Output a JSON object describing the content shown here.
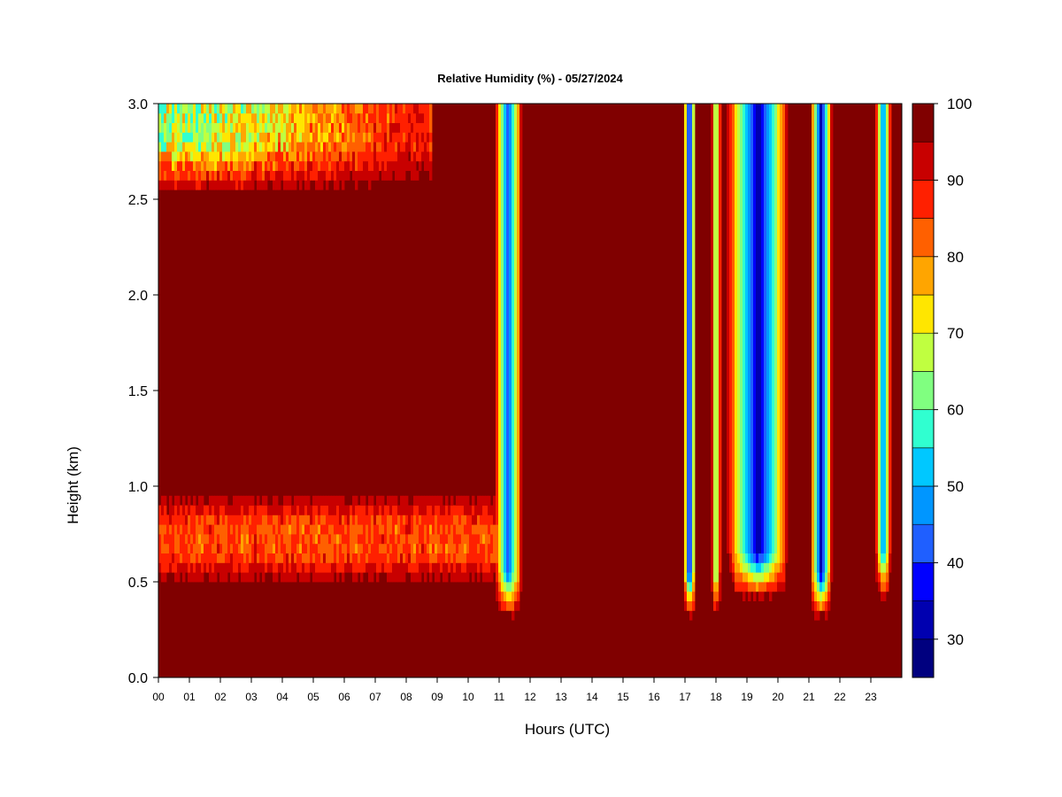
{
  "chart_data": {
    "type": "heatmap",
    "title": "Relative Humidity (%) - 05/27/2024",
    "xlabel": "Hours (UTC)",
    "ylabel": "Height (km)",
    "xlim": [
      0,
      24
    ],
    "ylim": [
      0,
      3.0
    ],
    "x_ticks": [
      "00",
      "01",
      "02",
      "03",
      "04",
      "05",
      "06",
      "07",
      "08",
      "09",
      "10",
      "11",
      "12",
      "13",
      "14",
      "15",
      "16",
      "17",
      "18",
      "19",
      "20",
      "21",
      "22",
      "23"
    ],
    "y_ticks": [
      "0.0",
      "0.5",
      "1.0",
      "1.5",
      "2.0",
      "2.5",
      "3.0"
    ],
    "colorbar": {
      "range": [
        25,
        100
      ],
      "step": 5,
      "tick_labels": [
        "30",
        "40",
        "50",
        "60",
        "70",
        "80",
        "90",
        "100"
      ],
      "colors": [
        "#00007f",
        "#0000b0",
        "#0000ff",
        "#1f5fff",
        "#0096ff",
        "#00c8ff",
        "#30ffd0",
        "#80ff80",
        "#c0ff40",
        "#ffe600",
        "#ffa500",
        "#ff6000",
        "#ff2000",
        "#c80000",
        "#800000"
      ]
    },
    "features": [
      {
        "name": "dry layer aloft",
        "x": [
          0,
          8.8
        ],
        "y": [
          2.5,
          3.0
        ],
        "min_rh": 55
      },
      {
        "name": "dry plume",
        "x": [
          10.9,
          11.7
        ],
        "y": [
          0.3,
          3.0
        ],
        "min_rh": 40
      },
      {
        "name": "dry plume",
        "x": [
          17.0,
          17.3
        ],
        "y": [
          0.3,
          3.0
        ],
        "min_rh": 30
      },
      {
        "name": "dry plume",
        "x": [
          17.9,
          18.1
        ],
        "y": [
          0.3,
          3.0
        ],
        "min_rh": 55
      },
      {
        "name": "dry plume",
        "x": [
          18.4,
          20.3
        ],
        "y": [
          0.4,
          3.0
        ],
        "min_rh": 30
      },
      {
        "name": "dry plume",
        "x": [
          21.1,
          21.7
        ],
        "y": [
          0.3,
          3.0
        ],
        "min_rh": 30
      },
      {
        "name": "dry plume",
        "x": [
          23.2,
          23.6
        ],
        "y": [
          0.4,
          3.0
        ],
        "min_rh": 45
      },
      {
        "name": "moist band",
        "x": [
          0,
          11
        ],
        "y": [
          0.45,
          1.0
        ],
        "min_rh": 80
      }
    ]
  }
}
